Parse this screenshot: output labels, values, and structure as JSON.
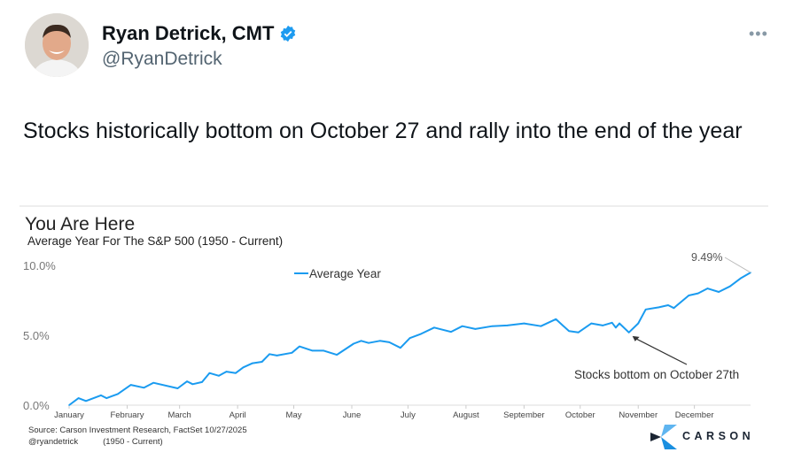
{
  "tweet": {
    "display_name": "Ryan Detrick, CMT",
    "handle": "@RyanDetrick",
    "verified": true,
    "more_icon": "more-horizontal-icon",
    "text": "Stocks historically bottom on October 27 and rally into the end of the year"
  },
  "colors": {
    "series": "#1a9bf0",
    "verified": "#1d9bf0",
    "brand_dark": "#1b2533"
  },
  "chart_data": {
    "type": "line",
    "title": "You Are Here",
    "subtitle": "Average Year For The S&P 500 (1950 - Current)",
    "ylim": [
      0,
      10
    ],
    "y_ticks": [
      "0.0%",
      "5.0%",
      "10.0%"
    ],
    "x_ticks": [
      "January",
      "February",
      "March",
      "April",
      "May",
      "June",
      "July",
      "August",
      "September",
      "October",
      "November",
      "December"
    ],
    "legend": {
      "label": "Average Year",
      "placement": "top-center"
    },
    "grid": false,
    "series": [
      {
        "name": "Average Year",
        "points": [
          [
            "01-01",
            0.0
          ],
          [
            "01-06",
            0.5
          ],
          [
            "01-10",
            0.3
          ],
          [
            "01-18",
            0.7
          ],
          [
            "01-21",
            0.5
          ],
          [
            "01-27",
            0.8
          ],
          [
            "02-03",
            1.45
          ],
          [
            "02-10",
            1.25
          ],
          [
            "02-15",
            1.6
          ],
          [
            "02-28",
            1.2
          ],
          [
            "03-05",
            1.7
          ],
          [
            "03-08",
            1.5
          ],
          [
            "03-13",
            1.65
          ],
          [
            "03-17",
            2.3
          ],
          [
            "03-22",
            2.1
          ],
          [
            "03-26",
            2.4
          ],
          [
            "03-31",
            2.3
          ],
          [
            "04-04",
            2.7
          ],
          [
            "04-09",
            3.0
          ],
          [
            "04-14",
            3.1
          ],
          [
            "04-18",
            3.65
          ],
          [
            "04-22",
            3.55
          ],
          [
            "04-30",
            3.75
          ],
          [
            "05-04",
            4.2
          ],
          [
            "05-11",
            3.9
          ],
          [
            "05-17",
            3.9
          ],
          [
            "05-24",
            3.6
          ],
          [
            "06-02",
            4.4
          ],
          [
            "06-06",
            4.6
          ],
          [
            "06-10",
            4.45
          ],
          [
            "06-16",
            4.6
          ],
          [
            "06-21",
            4.5
          ],
          [
            "06-27",
            4.1
          ],
          [
            "07-02",
            4.8
          ],
          [
            "07-08",
            5.1
          ],
          [
            "07-15",
            5.55
          ],
          [
            "07-24",
            5.25
          ],
          [
            "07-30",
            5.65
          ],
          [
            "08-06",
            5.45
          ],
          [
            "08-15",
            5.65
          ],
          [
            "08-23",
            5.7
          ],
          [
            "09-01",
            5.85
          ],
          [
            "09-10",
            5.65
          ],
          [
            "09-18",
            6.15
          ],
          [
            "09-25",
            5.3
          ],
          [
            "09-30",
            5.2
          ],
          [
            "10-07",
            5.85
          ],
          [
            "10-13",
            5.7
          ],
          [
            "10-18",
            5.9
          ],
          [
            "10-20",
            5.55
          ],
          [
            "10-22",
            5.85
          ],
          [
            "10-27",
            5.2
          ],
          [
            "11-01",
            5.85
          ],
          [
            "11-05",
            6.85
          ],
          [
            "11-12",
            7.0
          ],
          [
            "11-17",
            7.15
          ],
          [
            "11-20",
            6.95
          ],
          [
            "11-28",
            7.85
          ],
          [
            "12-03",
            8.0
          ],
          [
            "12-08",
            8.35
          ],
          [
            "12-14",
            8.1
          ],
          [
            "12-20",
            8.5
          ],
          [
            "12-26",
            9.1
          ],
          [
            "12-31",
            9.49
          ]
        ]
      }
    ],
    "annotations": {
      "end_label": "9.49%",
      "bottom_label": "Stocks bottom on October 27th"
    },
    "source": "Source: Carson Investment Research, FactSet 10/27/2025",
    "credit": "@ryandetrick",
    "credit_range": "(1950 - Current)",
    "brand": "CARSON"
  }
}
